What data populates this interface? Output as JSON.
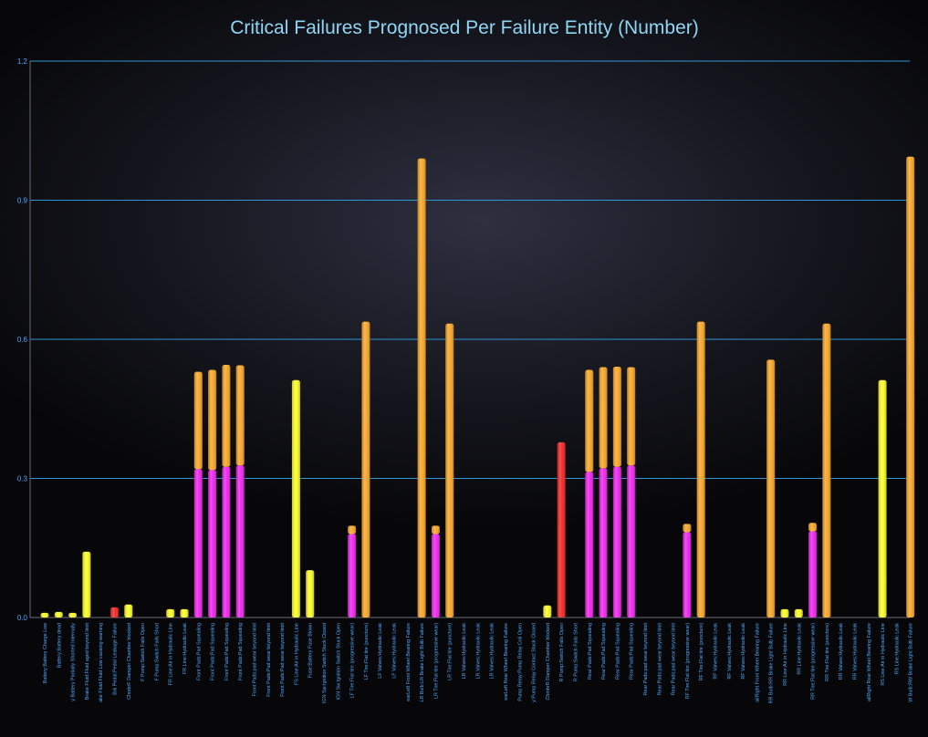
{
  "chart_data": {
    "type": "bar",
    "stacked": true,
    "title": "Critical Failures Prognosed Per Failure Entity (Number)",
    "xlabel": "",
    "ylabel": "",
    "ylim": [
      0,
      1.2
    ],
    "yticks": [
      "0.0",
      "0.3",
      "0.6",
      "0.9",
      "1.2"
    ],
    "grid": true,
    "legend": "none",
    "colors": {
      "magenta": "#ee22ee",
      "orange": "#f7a424",
      "yellow": "#fafa22",
      "red": "#f02424"
    },
    "categories": [
      "Battery:Battery Charge Low",
      "Battery:Battery dead",
      "y:Battery Partially Shorted Internally",
      "Brake Fluid:Fluid aged beyond limit",
      "ake Fluid:Fluid Low causing warning",
      "Brk Pedal:Pedal Leakage Failure",
      "ChmbrF Damper Chamber blocked",
      "F Pump:Switch Fails Open",
      "F Pump:Switch Fails Short",
      "FR Line:Air in Hydraulic Line",
      "FR Line:Hydraulic Leak",
      "Front Pads:Pad Squealing",
      "Front Pads:Pad Squealing",
      "Front Pads:Pad Squealing",
      "Front Pads:Pad Squealing",
      "Front Pads:pad wear beyond limit",
      "Front Pads:Pad wear beyond limit",
      "Front Pads:Pad wear beyond limit",
      "FS Line:Air in Hydraulic Line",
      "Fuse:Battery Fuse Blown",
      "IGN Sw:Ignition Switch Stuck Closed",
      "IGN Sw:Ignition Switch Stuck Open",
      "LF Tire:Flat tire (progressive wear)",
      "LF Tire:Flat tire (puncture)",
      "LF Valves:Hydraulic Leak",
      "LF Valves:Hydraulic Leak",
      "earLeft Front Wheel Bearing Failure",
      "LR Bulb:LR Brake Light Bulb Failure",
      "LR Tire:Flat tire (progressive wear)",
      "LR Tire:Flat tire (puncture)",
      "LR Valves:Hydraulic Leak",
      "LR Valves:Hydraulic Leak",
      "LR Valves:Hydraulic Leak",
      "earLeft Rear Wheel Bearing Failure",
      "Pump Relay:Pump Relay Coil Open",
      "y:Pump Relay Contact Stuck Closed",
      "ChmbrR Damper Chamber blocked",
      "R Pump:Switch Fails Open",
      "R Pump:Switch Fails Short",
      "Rear Pads:Pad Squealing",
      "Rear Pads:Pad Squealing",
      "Rear Pads:Pad Squealing",
      "Rear Pads:Pad Squealing",
      "Rear Pads:pad wear beyond limit",
      "Rear Pads:pad wear beyond limit",
      "Rear Pads:pad wear beyond limit",
      "RF Tire:Flat tire (progressive wear)",
      "RF Tire:Flat tire (puncture)",
      "RF Valves:Hydraulic Leak",
      "RF Valves:Hydraulic Leak",
      "RF Valves:Hydraulic Leak",
      "ailRight Front Wheel Bearing Failure",
      "RR Bulb:RR Brake Light Bulb Failure",
      "RR Line:Air in Hydraulic Line",
      "RR Line:Hydraulic Leak",
      "RR Tire:Flat tire (progressive wear)",
      "RR Tire:Flat tire (puncture)",
      "RR Valves:Hydraulic Leak",
      "RR Valves:Hydraulic Leak",
      "ailRight Rear Wheel Bearing Failure",
      "RS Line:Air in Hydraulic Line",
      "RS Line:Hydraulic Leak",
      "W Bulb:RW Brake Light Bulb Failure"
    ],
    "series": [
      {
        "color": "#ee22ee",
        "values": [
          0,
          0,
          0,
          0,
          0,
          0,
          0,
          0,
          0,
          0,
          0,
          0.32,
          0.318,
          0.325,
          0.328,
          0,
          0,
          0,
          0,
          0,
          0,
          0,
          0.18,
          0,
          0,
          0,
          0,
          0,
          0.18,
          0,
          0,
          0,
          0,
          0,
          0,
          0,
          0,
          0,
          0,
          0.314,
          0.322,
          0.325,
          0.328,
          0,
          0,
          0,
          0.184,
          0,
          0,
          0,
          0,
          0,
          0,
          0,
          0,
          0.186,
          0,
          0,
          0,
          0,
          0,
          0,
          0
        ]
      },
      {
        "color": "#f7a424",
        "values": [
          0,
          0,
          0,
          0,
          0,
          0,
          0,
          0,
          0,
          0,
          0,
          0.21,
          0.216,
          0.22,
          0.216,
          0,
          0,
          0,
          0,
          0,
          0,
          0,
          0.018,
          0.638,
          0,
          0,
          0,
          0.99,
          0.018,
          0.634,
          0,
          0,
          0,
          0,
          0,
          0,
          0,
          0,
          0,
          0.22,
          0.218,
          0.216,
          0.212,
          0,
          0,
          0,
          0.018,
          0.638,
          0,
          0,
          0,
          0,
          0.556,
          0,
          0,
          0.018,
          0.634,
          0,
          0,
          0,
          0,
          0,
          0.994
        ]
      },
      {
        "color": "#fafa22",
        "values": [
          0.01,
          0.012,
          0.01,
          0.142,
          0,
          0,
          0.028,
          0,
          0,
          0.018,
          0.018,
          0,
          0,
          0,
          0,
          0,
          0,
          0,
          0.512,
          0.102,
          0,
          0,
          0,
          0,
          0,
          0,
          0,
          0,
          0,
          0,
          0,
          0,
          0,
          0,
          0,
          0,
          0.026,
          0,
          0,
          0,
          0,
          0,
          0,
          0,
          0,
          0,
          0,
          0,
          0,
          0,
          0,
          0,
          0,
          0.018,
          0.018,
          0,
          0,
          0,
          0,
          0,
          0.512,
          0,
          0
        ]
      },
      {
        "color": "#f02424",
        "values": [
          0,
          0,
          0,
          0,
          0,
          0.022,
          0,
          0,
          0,
          0,
          0,
          0,
          0,
          0,
          0,
          0,
          0,
          0,
          0,
          0,
          0,
          0,
          0,
          0,
          0,
          0,
          0,
          0,
          0,
          0,
          0,
          0,
          0,
          0,
          0,
          0,
          0,
          0.378,
          0,
          0,
          0,
          0,
          0,
          0,
          0,
          0,
          0,
          0,
          0,
          0,
          0,
          0,
          0,
          0,
          0,
          0,
          0,
          0,
          0,
          0,
          0,
          0,
          0
        ]
      }
    ]
  }
}
